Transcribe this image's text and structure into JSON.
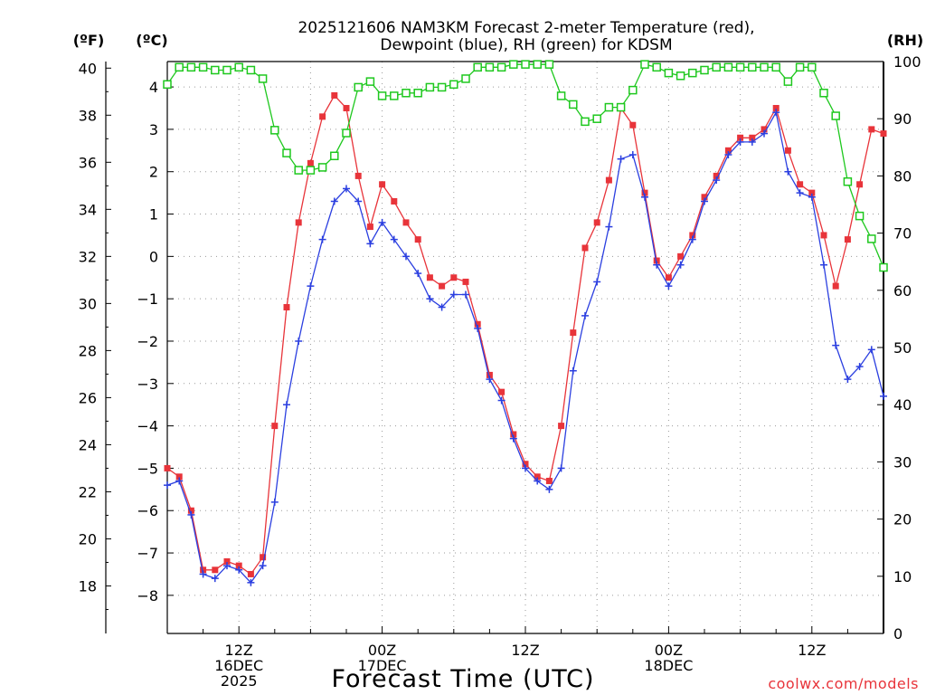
{
  "chart_data": {
    "type": "line",
    "title_line1": "2025121606 NAM3KM Forecast 2-meter Temperature (red),",
    "title_line2": "Dewpoint (blue), RH (green) for KDSM",
    "xlabel": "Forecast Time (UTC)",
    "credit": "coolwx.com/models",
    "unit_f_label": "(ºF)",
    "unit_c_label": "(ºC)",
    "unit_rh_label": "(RH)",
    "x_hour_range": [
      6,
      66
    ],
    "c_range": [
      -8.9,
      4.6
    ],
    "rh_range": [
      0,
      100
    ],
    "c_ticks": [
      4,
      3,
      2,
      1,
      0,
      -1,
      -2,
      -3,
      -4,
      -5,
      -6,
      -7,
      -8
    ],
    "c_tick_labels": [
      "4",
      "3",
      "2",
      "1",
      "0",
      "−1",
      "−2",
      "−3",
      "−4",
      "−5",
      "−6",
      "−7",
      "−8"
    ],
    "f_ticks": [
      40,
      38,
      36,
      34,
      32,
      30,
      28,
      26,
      24,
      22,
      20,
      18
    ],
    "f_tick_labels": [
      "40",
      "38",
      "36",
      "34",
      "32",
      "30",
      "28",
      "26",
      "24",
      "22",
      "20",
      "18"
    ],
    "rh_ticks": [
      100,
      90,
      80,
      70,
      60,
      50,
      40,
      30,
      20,
      10,
      0
    ],
    "rh_tick_labels": [
      "100",
      "90",
      "80",
      "70",
      "60",
      "50",
      "40",
      "30",
      "20",
      "10",
      "0"
    ],
    "x_ticks": [
      {
        "hour": 12,
        "lines": [
          "12Z",
          "16DEC",
          "2025"
        ]
      },
      {
        "hour": 24,
        "lines": [
          "00Z",
          "17DEC"
        ]
      },
      {
        "hour": 36,
        "lines": [
          "12Z"
        ]
      },
      {
        "hour": 48,
        "lines": [
          "00Z",
          "18DEC"
        ]
      },
      {
        "hour": 60,
        "lines": [
          "12Z"
        ]
      }
    ],
    "grid": true,
    "series": [
      {
        "name": "2-meter Temperature (°C)",
        "color": "#e8343a",
        "marker": "filled-square",
        "axis": "celsius",
        "values": [
          [
            6,
            -5.0
          ],
          [
            7,
            -5.2
          ],
          [
            8,
            -6.0
          ],
          [
            9,
            -7.4
          ],
          [
            10,
            -7.4
          ],
          [
            11,
            -7.2
          ],
          [
            12,
            -7.3
          ],
          [
            13,
            -7.5
          ],
          [
            14,
            -7.1
          ],
          [
            15,
            -4.0
          ],
          [
            16,
            -1.2
          ],
          [
            17,
            0.8
          ],
          [
            18,
            2.2
          ],
          [
            19,
            3.3
          ],
          [
            20,
            3.8
          ],
          [
            21,
            3.5
          ],
          [
            22,
            1.9
          ],
          [
            23,
            0.7
          ],
          [
            24,
            1.7
          ],
          [
            25,
            1.3
          ],
          [
            26,
            0.8
          ],
          [
            27,
            0.4
          ],
          [
            28,
            -0.5
          ],
          [
            29,
            -0.7
          ],
          [
            30,
            -0.5
          ],
          [
            31,
            -0.6
          ],
          [
            32,
            -1.6
          ],
          [
            33,
            -2.8
          ],
          [
            34,
            -3.2
          ],
          [
            35,
            -4.2
          ],
          [
            36,
            -4.9
          ],
          [
            37,
            -5.2
          ],
          [
            38,
            -5.3
          ],
          [
            39,
            -4.0
          ],
          [
            40,
            -1.8
          ],
          [
            41,
            0.2
          ],
          [
            42,
            0.8
          ],
          [
            43,
            1.8
          ],
          [
            44,
            3.5
          ],
          [
            45,
            3.1
          ],
          [
            46,
            1.5
          ],
          [
            47,
            -0.1
          ],
          [
            48,
            -0.5
          ],
          [
            49,
            0.0
          ],
          [
            50,
            0.5
          ],
          [
            51,
            1.4
          ],
          [
            52,
            1.9
          ],
          [
            53,
            2.5
          ],
          [
            54,
            2.8
          ],
          [
            55,
            2.8
          ],
          [
            56,
            3.0
          ],
          [
            57,
            3.5
          ],
          [
            58,
            2.5
          ],
          [
            59,
            1.7
          ],
          [
            60,
            1.5
          ],
          [
            61,
            0.5
          ],
          [
            62,
            -0.7
          ],
          [
            63,
            0.4
          ],
          [
            64,
            1.7
          ],
          [
            65,
            3.0
          ],
          [
            66,
            2.9
          ]
        ]
      },
      {
        "name": "Dewpoint (°C)",
        "color": "#2b3fe0",
        "marker": "plus",
        "axis": "celsius",
        "values": [
          [
            6,
            -5.4
          ],
          [
            7,
            -5.3
          ],
          [
            8,
            -6.1
          ],
          [
            9,
            -7.5
          ],
          [
            10,
            -7.6
          ],
          [
            11,
            -7.3
          ],
          [
            12,
            -7.4
          ],
          [
            13,
            -7.7
          ],
          [
            14,
            -7.3
          ],
          [
            15,
            -5.8
          ],
          [
            16,
            -3.5
          ],
          [
            17,
            -2.0
          ],
          [
            18,
            -0.7
          ],
          [
            19,
            0.4
          ],
          [
            20,
            1.3
          ],
          [
            21,
            1.6
          ],
          [
            22,
            1.3
          ],
          [
            23,
            0.3
          ],
          [
            24,
            0.8
          ],
          [
            25,
            0.4
          ],
          [
            26,
            0.0
          ],
          [
            27,
            -0.4
          ],
          [
            28,
            -1.0
          ],
          [
            29,
            -1.2
          ],
          [
            30,
            -0.9
          ],
          [
            31,
            -0.9
          ],
          [
            32,
            -1.7
          ],
          [
            33,
            -2.9
          ],
          [
            34,
            -3.4
          ],
          [
            35,
            -4.3
          ],
          [
            36,
            -5.0
          ],
          [
            37,
            -5.3
          ],
          [
            38,
            -5.5
          ],
          [
            39,
            -5.0
          ],
          [
            40,
            -2.7
          ],
          [
            41,
            -1.4
          ],
          [
            42,
            -0.6
          ],
          [
            43,
            0.7
          ],
          [
            44,
            2.3
          ],
          [
            45,
            2.4
          ],
          [
            46,
            1.4
          ],
          [
            47,
            -0.2
          ],
          [
            48,
            -0.7
          ],
          [
            49,
            -0.2
          ],
          [
            50,
            0.4
          ],
          [
            51,
            1.3
          ],
          [
            52,
            1.8
          ],
          [
            53,
            2.4
          ],
          [
            54,
            2.7
          ],
          [
            55,
            2.7
          ],
          [
            56,
            2.9
          ],
          [
            57,
            3.4
          ],
          [
            58,
            2.0
          ],
          [
            59,
            1.5
          ],
          [
            60,
            1.4
          ],
          [
            61,
            -0.2
          ],
          [
            62,
            -2.1
          ],
          [
            63,
            -2.9
          ],
          [
            64,
            -2.6
          ],
          [
            65,
            -2.2
          ],
          [
            66,
            -3.3
          ]
        ]
      },
      {
        "name": "RH (%)",
        "color": "#1ec81e",
        "marker": "open-square",
        "axis": "rh",
        "values": [
          [
            6,
            96
          ],
          [
            7,
            99
          ],
          [
            8,
            99
          ],
          [
            9,
            99
          ],
          [
            10,
            98.5
          ],
          [
            11,
            98.5
          ],
          [
            12,
            99
          ],
          [
            13,
            98.5
          ],
          [
            14,
            97
          ],
          [
            15,
            88
          ],
          [
            16,
            84
          ],
          [
            17,
            81
          ],
          [
            18,
            81
          ],
          [
            19,
            81.5
          ],
          [
            20,
            83.5
          ],
          [
            21,
            87.5
          ],
          [
            22,
            95.5
          ],
          [
            23,
            96.5
          ],
          [
            24,
            94
          ],
          [
            25,
            94
          ],
          [
            26,
            94.5
          ],
          [
            27,
            94.5
          ],
          [
            28,
            95.5
          ],
          [
            29,
            95.5
          ],
          [
            30,
            96
          ],
          [
            31,
            97
          ],
          [
            32,
            99
          ],
          [
            33,
            99
          ],
          [
            34,
            99
          ],
          [
            35,
            99.5
          ],
          [
            36,
            99.5
          ],
          [
            37,
            99.5
          ],
          [
            38,
            99.5
          ],
          [
            39,
            94
          ],
          [
            40,
            92.5
          ],
          [
            41,
            89.5
          ],
          [
            42,
            90
          ],
          [
            43,
            92
          ],
          [
            44,
            92
          ],
          [
            45,
            95
          ],
          [
            46,
            99.5
          ],
          [
            47,
            99
          ],
          [
            48,
            98
          ],
          [
            49,
            97.5
          ],
          [
            50,
            98
          ],
          [
            51,
            98.5
          ],
          [
            52,
            99
          ],
          [
            53,
            99
          ],
          [
            54,
            99
          ],
          [
            55,
            99
          ],
          [
            56,
            99
          ],
          [
            57,
            99
          ],
          [
            58,
            96.5
          ],
          [
            59,
            99
          ],
          [
            60,
            99
          ],
          [
            61,
            94.5
          ],
          [
            62,
            90.5
          ],
          [
            63,
            79
          ],
          [
            64,
            73
          ],
          [
            65,
            69
          ],
          [
            66,
            64
          ]
        ]
      }
    ]
  }
}
